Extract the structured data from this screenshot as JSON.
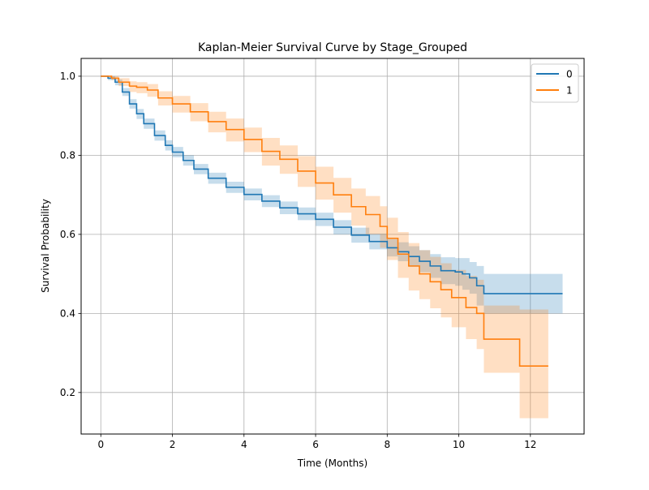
{
  "chart_data": {
    "type": "line",
    "subtype": "kaplan-meier step curves with confidence bands",
    "title": "Kaplan-Meier Survival Curve by Stage_Grouped",
    "xlabel": "Time (Months)",
    "ylabel": "Survival Probability",
    "xlim": [
      -0.55,
      13.5
    ],
    "ylim": [
      0.095,
      1.045
    ],
    "xticks": [
      0,
      2,
      4,
      6,
      8,
      10,
      12
    ],
    "yticks": [
      0.2,
      0.4,
      0.6,
      0.8,
      1.0
    ],
    "xtick_labels": [
      "0",
      "2",
      "4",
      "6",
      "8",
      "10",
      "12"
    ],
    "ytick_labels": [
      "0.2",
      "0.4",
      "0.6",
      "0.8",
      "1.0"
    ],
    "grid": true,
    "legend_position": "top-right",
    "series": [
      {
        "name": "0",
        "color": "#1f77b4",
        "x": [
          0,
          0.2,
          0.4,
          0.6,
          0.8,
          1.0,
          1.2,
          1.5,
          1.8,
          2.0,
          2.3,
          2.6,
          3.0,
          3.5,
          4.0,
          4.5,
          5.0,
          5.5,
          6.0,
          6.5,
          7.0,
          7.5,
          8.0,
          8.3,
          8.6,
          8.9,
          9.2,
          9.5,
          9.9,
          10.1,
          10.3,
          10.5,
          10.7,
          12.9
        ],
        "y": [
          1.0,
          0.995,
          0.985,
          0.96,
          0.93,
          0.905,
          0.88,
          0.85,
          0.825,
          0.808,
          0.787,
          0.765,
          0.742,
          0.719,
          0.701,
          0.684,
          0.667,
          0.652,
          0.638,
          0.618,
          0.598,
          0.582,
          0.566,
          0.556,
          0.544,
          0.532,
          0.52,
          0.508,
          0.505,
          0.5,
          0.49,
          0.47,
          0.45,
          0.45
        ],
        "ci_upper": [
          1.0,
          1.0,
          0.992,
          0.97,
          0.942,
          0.917,
          0.893,
          0.863,
          0.838,
          0.821,
          0.8,
          0.778,
          0.756,
          0.733,
          0.716,
          0.699,
          0.683,
          0.668,
          0.655,
          0.636,
          0.617,
          0.602,
          0.588,
          0.58,
          0.57,
          0.56,
          0.55,
          0.542,
          0.54,
          0.54,
          0.53,
          0.52,
          0.5,
          0.5
        ],
        "ci_lower": [
          1.0,
          0.99,
          0.977,
          0.95,
          0.918,
          0.892,
          0.867,
          0.837,
          0.812,
          0.795,
          0.774,
          0.752,
          0.728,
          0.705,
          0.686,
          0.669,
          0.651,
          0.636,
          0.621,
          0.6,
          0.579,
          0.562,
          0.544,
          0.532,
          0.518,
          0.504,
          0.49,
          0.474,
          0.47,
          0.46,
          0.45,
          0.42,
          0.4,
          0.4
        ]
      },
      {
        "name": "1",
        "color": "#ff7f0e",
        "x": [
          0,
          0.3,
          0.5,
          0.8,
          1.0,
          1.3,
          1.6,
          2.0,
          2.5,
          3.0,
          3.5,
          4.0,
          4.5,
          5.0,
          5.5,
          6.0,
          6.5,
          7.0,
          7.4,
          7.8,
          8.0,
          8.3,
          8.6,
          8.9,
          9.2,
          9.5,
          9.8,
          10.2,
          10.5,
          10.7,
          11.7,
          12.5
        ],
        "y": [
          1.0,
          0.995,
          0.985,
          0.975,
          0.972,
          0.965,
          0.945,
          0.93,
          0.91,
          0.885,
          0.865,
          0.84,
          0.81,
          0.79,
          0.76,
          0.73,
          0.7,
          0.67,
          0.65,
          0.62,
          0.59,
          0.55,
          0.52,
          0.5,
          0.48,
          0.46,
          0.44,
          0.415,
          0.4,
          0.335,
          0.267,
          0.267
        ],
        "ci_upper": [
          1.0,
          1.0,
          0.995,
          0.987,
          0.985,
          0.98,
          0.962,
          0.95,
          0.932,
          0.91,
          0.893,
          0.87,
          0.844,
          0.825,
          0.798,
          0.771,
          0.743,
          0.716,
          0.697,
          0.671,
          0.642,
          0.606,
          0.578,
          0.56,
          0.543,
          0.527,
          0.51,
          0.495,
          0.485,
          0.42,
          0.41,
          0.41
        ],
        "ci_lower": [
          1.0,
          0.99,
          0.975,
          0.96,
          0.957,
          0.948,
          0.926,
          0.908,
          0.886,
          0.858,
          0.835,
          0.808,
          0.774,
          0.753,
          0.72,
          0.688,
          0.655,
          0.622,
          0.6,
          0.566,
          0.535,
          0.49,
          0.458,
          0.436,
          0.413,
          0.39,
          0.365,
          0.335,
          0.31,
          0.25,
          0.135,
          0.135
        ]
      }
    ]
  }
}
